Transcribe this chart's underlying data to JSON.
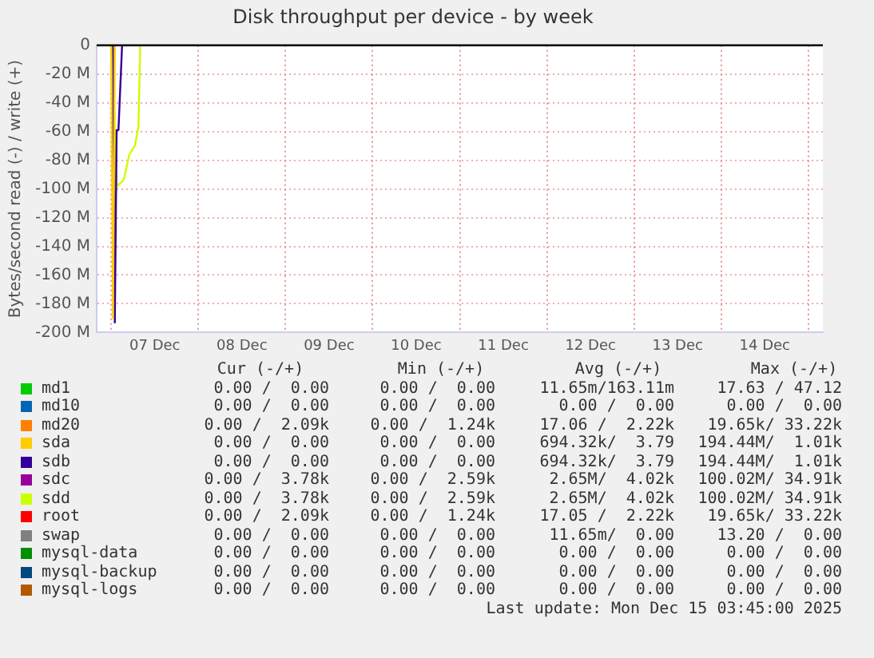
{
  "chart_data": {
    "type": "line",
    "title": "Disk throughput per device - by week",
    "ylabel": "Bytes/second read (-) / write (+)",
    "x": [
      "2025-12-07T00:00",
      "2025-12-07T00:30",
      "2025-12-07T01:00",
      "2025-12-07T01:30",
      "2025-12-07T02:00",
      "2025-12-07T03:00",
      "2025-12-07T03:30",
      "2025-12-07T05:00",
      "2025-12-07T06:30",
      "2025-12-07T07:30",
      "2025-12-07T08:00"
    ],
    "series": [
      {
        "name": "md1",
        "color": "#00cc00",
        "values": [
          null,
          null,
          null,
          null,
          null,
          null,
          null,
          null,
          null,
          null,
          null
        ]
      },
      {
        "name": "md10",
        "color": "#0066b3",
        "values": [
          null,
          null,
          null,
          null,
          null,
          null,
          null,
          null,
          null,
          null,
          null
        ]
      },
      {
        "name": "md20",
        "color": "#ff8000",
        "values": [
          null,
          null,
          null,
          null,
          null,
          null,
          null,
          null,
          null,
          null,
          null
        ]
      },
      {
        "name": "sda",
        "color": "#ffcc00",
        "values": [
          0,
          -190000000,
          0,
          null,
          null,
          null,
          null,
          null,
          null,
          null,
          null
        ]
      },
      {
        "name": "sdb",
        "color": "#330099",
        "values": [
          null,
          0,
          -193000000,
          -59000000,
          -59000000,
          0,
          null,
          null,
          null,
          null,
          null
        ]
      },
      {
        "name": "sdc",
        "color": "#990099",
        "values": [
          null,
          null,
          null,
          null,
          null,
          null,
          null,
          null,
          null,
          null,
          null
        ]
      },
      {
        "name": "sdd",
        "color": "#ccff00",
        "values": [
          null,
          0,
          -60000000,
          -98000000,
          -97000000,
          -95000000,
          -93000000,
          -76000000,
          -70000000,
          -57000000,
          0
        ]
      },
      {
        "name": "root",
        "color": "#ff0000",
        "values": [
          null,
          null,
          null,
          null,
          null,
          null,
          null,
          null,
          null,
          null,
          null
        ]
      },
      {
        "name": "swap",
        "color": "#808080",
        "values": [
          null,
          null,
          null,
          null,
          null,
          null,
          null,
          null,
          null,
          null,
          null
        ]
      },
      {
        "name": "mysql-data",
        "color": "#008f00",
        "values": [
          null,
          null,
          null,
          null,
          null,
          null,
          null,
          null,
          null,
          null,
          null
        ]
      },
      {
        "name": "mysql-backup",
        "color": "#00487d",
        "values": [
          null,
          null,
          null,
          null,
          null,
          null,
          null,
          null,
          null,
          null,
          null
        ]
      },
      {
        "name": "mysql-logs",
        "color": "#b35a00",
        "values": [
          null,
          null,
          null,
          null,
          null,
          null,
          null,
          null,
          null,
          null,
          null
        ]
      }
    ],
    "xlim": [
      "2025-12-06T20:00",
      "2025-12-15T04:00"
    ],
    "xticks": [
      {
        "value": "2025-12-07T00:00",
        "label": null
      },
      {
        "value": "2025-12-07T12:00",
        "label": "07 Dec"
      },
      {
        "value": "2025-12-08T00:00",
        "label": null
      },
      {
        "value": "2025-12-08T12:00",
        "label": "08 Dec"
      },
      {
        "value": "2025-12-09T00:00",
        "label": null
      },
      {
        "value": "2025-12-09T12:00",
        "label": "09 Dec"
      },
      {
        "value": "2025-12-10T00:00",
        "label": null
      },
      {
        "value": "2025-12-10T12:00",
        "label": "10 Dec"
      },
      {
        "value": "2025-12-11T00:00",
        "label": null
      },
      {
        "value": "2025-12-11T12:00",
        "label": "11 Dec"
      },
      {
        "value": "2025-12-12T00:00",
        "label": null
      },
      {
        "value": "2025-12-12T12:00",
        "label": "12 Dec"
      },
      {
        "value": "2025-12-13T00:00",
        "label": null
      },
      {
        "value": "2025-12-13T12:00",
        "label": "13 Dec"
      },
      {
        "value": "2025-12-14T00:00",
        "label": null
      },
      {
        "value": "2025-12-14T12:00",
        "label": "14 Dec"
      },
      {
        "value": "2025-12-15T00:00",
        "label": null
      }
    ],
    "ylim": [
      -200000000,
      0
    ],
    "yticks": [
      {
        "value": -200000000,
        "label": "-200 M"
      },
      {
        "value": -180000000,
        "label": "-180 M"
      },
      {
        "value": -160000000,
        "label": "-160 M"
      },
      {
        "value": -140000000,
        "label": "-140 M"
      },
      {
        "value": -120000000,
        "label": "-120 M"
      },
      {
        "value": -100000000,
        "label": "-100 M"
      },
      {
        "value": -80000000,
        "label": "-80 M"
      },
      {
        "value": -60000000,
        "label": "-60 M"
      },
      {
        "value": -40000000,
        "label": "-40 M"
      },
      {
        "value": -20000000,
        "label": "-20 M"
      },
      0
    ],
    "ref_lines": [
      {
        "axis": "y",
        "value": 0,
        "label": null,
        "color": "#000000"
      }
    ],
    "grid": true,
    "legend": "bottom",
    "marker": "none",
    "line_style": "solid",
    "annotations": [
      "Cur (-/+)",
      "Min (-/+)",
      "Avg (-/+)",
      "Max (-/+)",
      "0.00 /  0.00",
      "0.00 /  0.00",
      "11.65m/163.11m",
      "17.63 / 47.12",
      "0.00 /  0.00",
      "0.00 /  0.00",
      "0.00 /  0.00",
      "0.00 /  0.00",
      "0.00 /  2.09k",
      "0.00 /  1.24k",
      "17.06 /  2.22k",
      "19.65k/ 33.22k",
      "0.00 /  0.00",
      "0.00 /  0.00",
      "694.32k/  3.79",
      "194.44M/  1.01k",
      "0.00 /  0.00",
      "0.00 /  0.00",
      "694.32k/  3.79",
      "194.44M/  1.01k",
      "0.00 /  3.78k",
      "0.00 /  2.59k",
      "2.65M/  4.02k",
      "100.02M/ 34.91k",
      "0.00 /  3.78k",
      "0.00 /  2.59k",
      "2.65M/  4.02k",
      "100.02M/ 34.91k",
      "0.00 /  2.09k",
      "0.00 /  1.24k",
      "17.05 /  2.22k",
      "19.65k/ 33.22k",
      "0.00 /  0.00",
      "0.00 /  0.00",
      "11.65m/  0.00",
      "13.20 /  0.00",
      "0.00 /  0.00",
      "0.00 /  0.00",
      "0.00 /  0.00",
      "0.00 /  0.00",
      "0.00 /  0.00",
      "0.00 /  0.00",
      "0.00 /  0.00",
      "0.00 /  0.00",
      "0.00 /  0.00",
      "0.00 /  0.00",
      "0.00 /  0.00",
      "0.00 /  0.00",
      "Last update: Mon Dec 15 03:45:00 2025"
    ]
  }
}
